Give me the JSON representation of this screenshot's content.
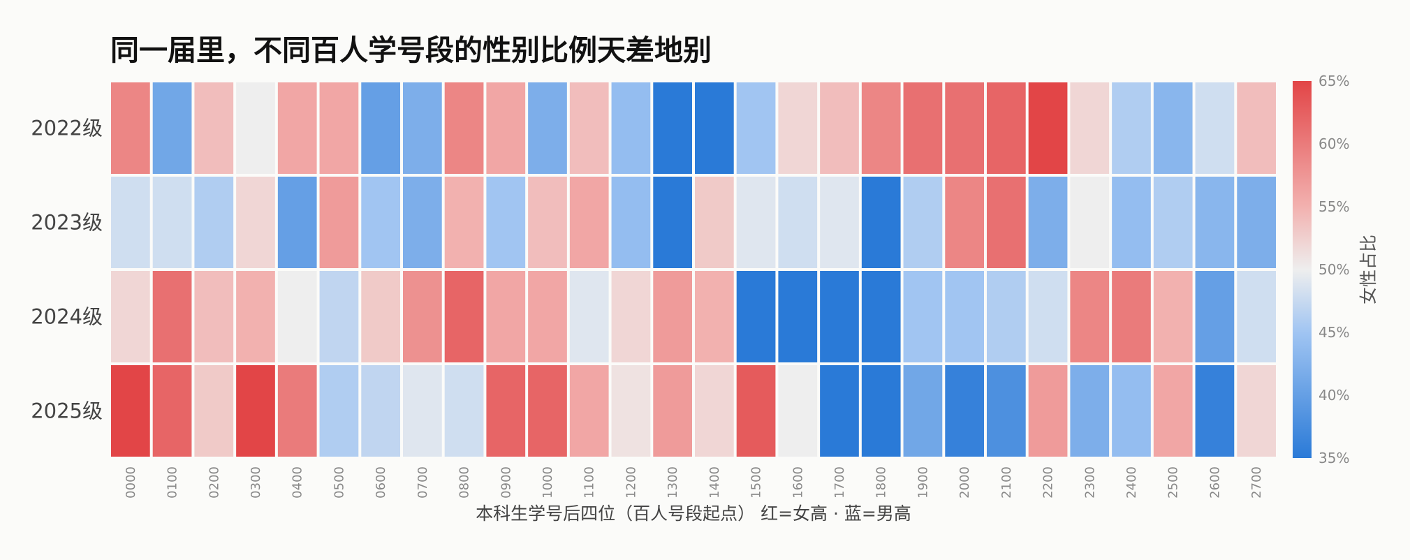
{
  "chart_data": {
    "type": "heatmap",
    "title": "同一届里，不同百人学号段的性别比例天差地别",
    "xlabel": "本科生学号后四位（百人号段起点） 红=女高 · 蓝=男高",
    "ylabel": "",
    "x_categories": [
      "0000",
      "0100",
      "0200",
      "0300",
      "0400",
      "0500",
      "0600",
      "0700",
      "0800",
      "0900",
      "1000",
      "1100",
      "1200",
      "1300",
      "1400",
      "1500",
      "1600",
      "1700",
      "1800",
      "1900",
      "2000",
      "2100",
      "2200",
      "2300",
      "2400",
      "2500",
      "2600",
      "2700"
    ],
    "y_categories": [
      "2022级",
      "2023级",
      "2024级",
      "2025级"
    ],
    "values": [
      [
        59,
        41,
        54,
        50,
        56,
        56,
        40,
        42,
        59,
        56,
        42,
        54,
        44,
        35,
        35,
        45,
        52,
        54,
        59,
        61,
        61,
        62,
        65,
        52,
        46,
        43,
        48,
        54
      ],
      [
        48,
        48,
        46,
        52,
        40,
        57,
        45,
        42,
        55,
        45,
        54,
        56,
        44,
        35,
        53,
        49,
        48,
        49,
        35,
        46,
        59,
        61,
        42,
        50,
        44,
        46,
        43,
        42
      ],
      [
        52,
        61,
        54,
        55,
        50,
        47,
        53,
        58,
        62,
        56,
        56,
        49,
        52,
        57,
        55,
        35,
        35,
        35,
        35,
        45,
        45,
        46,
        48,
        59,
        60,
        55,
        40,
        48
      ],
      [
        65,
        62,
        53,
        65,
        60,
        46,
        47,
        49,
        48,
        62,
        62,
        56,
        51,
        57,
        52,
        63,
        50,
        35,
        35,
        41,
        36,
        38,
        57,
        42,
        44,
        56,
        36,
        52
      ]
    ],
    "value_range": [
      35,
      65
    ],
    "colorbar": {
      "label": "女性占比",
      "ticks": [
        "35%",
        "40%",
        "45%",
        "50%",
        "55%",
        "60%",
        "65%"
      ],
      "tick_values": [
        35,
        40,
        45,
        50,
        55,
        60,
        65
      ]
    },
    "colormap": {
      "low": "#2a7ad7",
      "mid_low": "#9fc4f2",
      "mid": "#eeeeee",
      "mid_high": "#f2b0ae",
      "high": "#e24547"
    },
    "grid": false
  }
}
